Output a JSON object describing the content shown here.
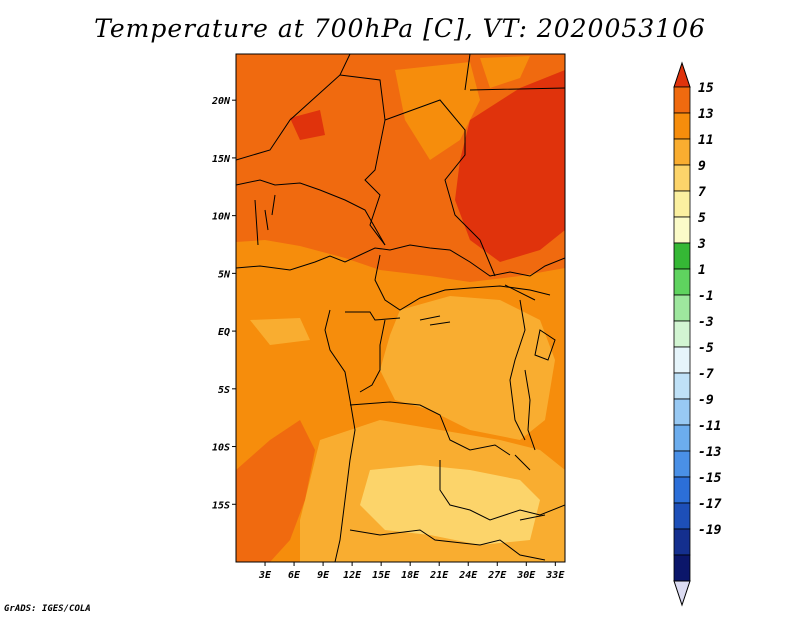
{
  "title": "Temperature at 700hPa [C], VT: 2020053106",
  "credit": "GrADS: IGES/COLA",
  "chart_data": {
    "type": "heatmap",
    "variable": "Temperature",
    "level": "700hPa",
    "units": "C",
    "valid_time": "2020053106",
    "lon_range": [
      0,
      34
    ],
    "lat_range": [
      -20,
      24
    ],
    "x_ticks": [
      "3E",
      "6E",
      "9E",
      "12E",
      "15E",
      "18E",
      "21E",
      "24E",
      "27E",
      "30E",
      "33E"
    ],
    "x_tick_values": [
      3,
      6,
      9,
      12,
      15,
      18,
      21,
      24,
      27,
      30,
      33
    ],
    "y_ticks": [
      "20N",
      "15N",
      "10N",
      "5N",
      "EQ",
      "5S",
      "10S",
      "15S"
    ],
    "y_tick_values": [
      20,
      15,
      10,
      5,
      0,
      -5,
      -10,
      -15
    ],
    "colorbar": {
      "labels": [
        "15",
        "13",
        "11",
        "9",
        "7",
        "5",
        "3",
        "1",
        "-1",
        "-3",
        "-5",
        "-7",
        "-9",
        "-11",
        "-13",
        "-15",
        "-17",
        "-19"
      ],
      "colors": [
        "#e0330c",
        "#f06a0f",
        "#f68d0c",
        "#f9ad30",
        "#fcd46a",
        "#fbf0a0",
        "#fbfbc8",
        "#35b835",
        "#5fd35f",
        "#9ee79e",
        "#d2f5d2",
        "#e6f5fb",
        "#bfe1f7",
        "#98c9f3",
        "#6cadee",
        "#4a90e6",
        "#2c6fd8",
        "#1d4fb8",
        "#142f8e",
        "#0b166a"
      ],
      "under_color": "#dcdcf2",
      "over_color": "#e0330c"
    },
    "regions": [
      {
        "level": "11-13",
        "color": "#f06a0f",
        "area": "Sahara / Sahel north of ~7N"
      },
      {
        "level": "13-15",
        "color": "#e0330c",
        "area": "Sudan / northeast (~20-32E, 8-22N)"
      },
      {
        "level": "9-11",
        "color": "#f68d0c",
        "area": "Gulf of Guinea, Congo basin, SE Atlantic"
      },
      {
        "level": "7-9",
        "color": "#f9ad30",
        "area": "Central Africa interior, Angola"
      },
      {
        "level": "5-7",
        "color": "#fcd46a",
        "area": "Zambia / southern Angola (~15-28E, 12-19S)"
      }
    ]
  }
}
